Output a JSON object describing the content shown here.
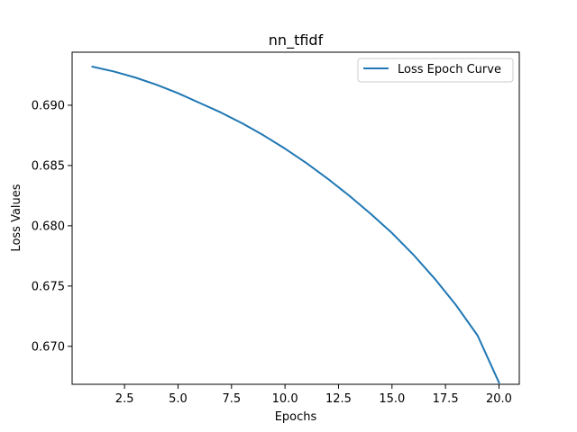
{
  "chart_data": {
    "type": "line",
    "title": "nn_tfidf",
    "xlabel": "Epochs",
    "ylabel": "Loss Values",
    "xlim": [
      0.05,
      20.95
    ],
    "ylim": [
      0.66685,
      0.6944
    ],
    "x_ticks": [
      2.5,
      5.0,
      7.5,
      10.0,
      12.5,
      15.0,
      17.5,
      20.0
    ],
    "x_tick_labels": [
      "2.5",
      "5.0",
      "7.5",
      "10.0",
      "12.5",
      "15.0",
      "17.5",
      "20.0"
    ],
    "y_ticks": [
      0.67,
      0.675,
      0.68,
      0.685,
      0.69
    ],
    "y_tick_labels": [
      "0.670",
      "0.675",
      "0.680",
      "0.685",
      "0.690"
    ],
    "legend": "upper right",
    "grid": false,
    "series": [
      {
        "name": "Loss Epoch Curve",
        "color": "#1f77b4",
        "x": [
          1,
          2,
          3,
          4,
          5,
          6,
          7,
          8,
          9,
          10,
          11,
          12,
          13,
          14,
          15,
          16,
          17,
          18,
          19,
          20
        ],
        "values": [
          0.6932,
          0.6928,
          0.6923,
          0.6917,
          0.691,
          0.6902,
          0.6894,
          0.6885,
          0.6875,
          0.6864,
          0.6852,
          0.6839,
          0.6825,
          0.681,
          0.6794,
          0.6776,
          0.6756,
          0.6734,
          0.6709,
          0.667
        ]
      }
    ]
  }
}
